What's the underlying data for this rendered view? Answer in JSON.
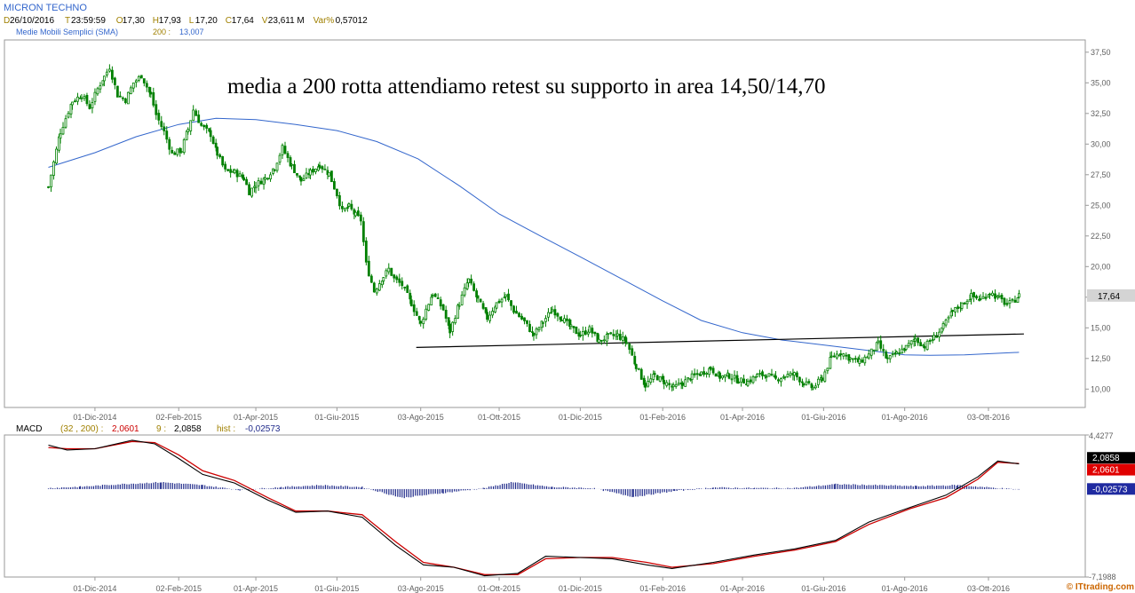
{
  "header": {
    "title": "MICRON TECHNO",
    "ohlc": [
      {
        "label": "D",
        "value": "26/10/2016"
      },
      {
        "label": "T",
        "value": "23:59:59"
      },
      {
        "label": "O",
        "value": "17,30"
      },
      {
        "label": "H",
        "value": "17,93"
      },
      {
        "label": "L",
        "value": "17,20"
      },
      {
        "label": "C",
        "value": "17,64"
      },
      {
        "label": "V",
        "value": "23,611 M"
      },
      {
        "label": "Var%",
        "value": "0,57012"
      }
    ],
    "sma_label": "Medie Mobili Semplici (SMA)",
    "sma_period": "200 :",
    "sma_value": "13,007"
  },
  "annotation": "media a 200 rotta attendiamo retest su supporto in area 14,50/14,70",
  "watermark": "© ITtrading.com",
  "colors": {
    "candle": "#008000",
    "sma": "#3366cc",
    "macd_line": "#000000",
    "signal_line": "#cc0000",
    "histogram": "#1f2a8a",
    "support": "#000000",
    "header_value": "#3366cc"
  },
  "chart_data": [
    {
      "type": "candlestick",
      "ylim": [
        8.5,
        38.5
      ],
      "y_ticks": [
        "37,50",
        "35,00",
        "32,50",
        "30,00",
        "27,50",
        "25,00",
        "22,50",
        "20,00",
        "17,50",
        "15,00",
        "12,50",
        "10,00"
      ],
      "y_tick_values": [
        37.5,
        35,
        32.5,
        30,
        27.5,
        25,
        22.5,
        20,
        17.5,
        15,
        12.5,
        10
      ],
      "x_ticks": [
        "01-Dic-2014",
        "02-Feb-2015",
        "01-Apr-2015",
        "01-Giu-2015",
        "03-Ago-2015",
        "01-Ott-2015",
        "01-Dic-2015",
        "01-Feb-2016",
        "01-Apr-2016",
        "01-Giu-2016",
        "01-Ago-2016",
        "03-Ott-2016"
      ],
      "last_price_label": "17,64",
      "last_price": 17.64,
      "price_path": [
        [
          "2014-10-27",
          26.5
        ],
        [
          "2014-11-05",
          31
        ],
        [
          "2014-11-14",
          33.5
        ],
        [
          "2014-11-21",
          34
        ],
        [
          "2014-11-27",
          33
        ],
        [
          "2014-12-03",
          34.5
        ],
        [
          "2014-12-08",
          35.5
        ],
        [
          "2014-12-12",
          36.3
        ],
        [
          "2014-12-18",
          34
        ],
        [
          "2014-12-24",
          33.6
        ],
        [
          "2014-12-30",
          35
        ],
        [
          "2015-01-05",
          35.6
        ],
        [
          "2015-01-12",
          34
        ],
        [
          "2015-01-16",
          32.4
        ],
        [
          "2015-01-22",
          31
        ],
        [
          "2015-01-28",
          29.2
        ],
        [
          "2015-02-04",
          29.5
        ],
        [
          "2015-02-09",
          31.2
        ],
        [
          "2015-02-13",
          32.8
        ],
        [
          "2015-02-19",
          31.5
        ],
        [
          "2015-02-26",
          30.8
        ],
        [
          "2015-03-03",
          29.2
        ],
        [
          "2015-03-09",
          27.8
        ],
        [
          "2015-03-16",
          27.7
        ],
        [
          "2015-03-23",
          27.2
        ],
        [
          "2015-03-27",
          26.1
        ],
        [
          "2015-04-01",
          26.7
        ],
        [
          "2015-04-08",
          27.2
        ],
        [
          "2015-04-15",
          28.1
        ],
        [
          "2015-04-21",
          29.7
        ],
        [
          "2015-04-28",
          28.2
        ],
        [
          "2015-05-05",
          27
        ],
        [
          "2015-05-12",
          27.7
        ],
        [
          "2015-05-19",
          28.3
        ],
        [
          "2015-05-26",
          27.6
        ],
        [
          "2015-06-01",
          25.9
        ],
        [
          "2015-06-05",
          24.5
        ],
        [
          "2015-06-10",
          24.9
        ],
        [
          "2015-06-15",
          24.2
        ],
        [
          "2015-06-19",
          23.8
        ],
        [
          "2015-06-23",
          20.2
        ],
        [
          "2015-06-29",
          18
        ],
        [
          "2015-07-06",
          19.2
        ],
        [
          "2015-07-10",
          19.8
        ],
        [
          "2015-07-14",
          19
        ],
        [
          "2015-07-20",
          18.5
        ],
        [
          "2015-07-27",
          17
        ],
        [
          "2015-08-03",
          15.3
        ],
        [
          "2015-08-07",
          16.5
        ],
        [
          "2015-08-12",
          17.8
        ],
        [
          "2015-08-20",
          16.5
        ],
        [
          "2015-08-25",
          14.7
        ],
        [
          "2015-09-01",
          17
        ],
        [
          "2015-09-08",
          18.9
        ],
        [
          "2015-09-15",
          17.3
        ],
        [
          "2015-09-22",
          15.8
        ],
        [
          "2015-09-29",
          17
        ],
        [
          "2015-10-06",
          17.6
        ],
        [
          "2015-10-12",
          16.4
        ],
        [
          "2015-10-20",
          15.5
        ],
        [
          "2015-10-27",
          14.4
        ],
        [
          "2015-11-03",
          15.5
        ],
        [
          "2015-11-10",
          16.5
        ],
        [
          "2015-11-17",
          15.8
        ],
        [
          "2015-11-24",
          15
        ],
        [
          "2015-12-01",
          14.4
        ],
        [
          "2015-12-08",
          14.9
        ],
        [
          "2015-12-15",
          13.9
        ],
        [
          "2015-12-22",
          14.3
        ],
        [
          "2015-12-29",
          14.4
        ],
        [
          "2016-01-05",
          13.8
        ],
        [
          "2016-01-12",
          11.9
        ],
        [
          "2016-01-19",
          10.3
        ],
        [
          "2016-01-26",
          11.1
        ],
        [
          "2016-02-02",
          10.6
        ],
        [
          "2016-02-09",
          10.1
        ],
        [
          "2016-02-16",
          10.5
        ],
        [
          "2016-02-23",
          11
        ],
        [
          "2016-03-01",
          11.3
        ],
        [
          "2016-03-08",
          11.7
        ],
        [
          "2016-03-15",
          11
        ],
        [
          "2016-03-22",
          11.1
        ],
        [
          "2016-03-29",
          10.7
        ],
        [
          "2016-04-05",
          10.6
        ],
        [
          "2016-04-12",
          11.1
        ],
        [
          "2016-04-19",
          11.2
        ],
        [
          "2016-04-26",
          10.8
        ],
        [
          "2016-05-03",
          11.1
        ],
        [
          "2016-05-10",
          11.2
        ],
        [
          "2016-05-17",
          10.5
        ],
        [
          "2016-05-24",
          10.1
        ],
        [
          "2016-05-31",
          10.9
        ],
        [
          "2016-06-07",
          12.6
        ],
        [
          "2016-06-14",
          13
        ],
        [
          "2016-06-21",
          12.5
        ],
        [
          "2016-06-28",
          12.2
        ],
        [
          "2016-07-05",
          12.8
        ],
        [
          "2016-07-12",
          13.7
        ],
        [
          "2016-07-19",
          12.4
        ],
        [
          "2016-07-26",
          12.9
        ],
        [
          "2016-08-02",
          13.4
        ],
        [
          "2016-08-09",
          14.1
        ],
        [
          "2016-08-16",
          13.5
        ],
        [
          "2016-08-23",
          14.2
        ],
        [
          "2016-08-30",
          15.1
        ],
        [
          "2016-09-06",
          16.3
        ],
        [
          "2016-09-13",
          16.9
        ],
        [
          "2016-09-20",
          17.6
        ],
        [
          "2016-09-27",
          17.3
        ],
        [
          "2016-10-04",
          17.9
        ],
        [
          "2016-10-11",
          17.4
        ],
        [
          "2016-10-17",
          16.9
        ],
        [
          "2016-10-21",
          17.1
        ],
        [
          "2016-10-26",
          17.64
        ]
      ],
      "sma_path": [
        [
          "2014-10-27",
          28.1
        ],
        [
          "2014-12-01",
          29.3
        ],
        [
          "2015-01-01",
          30.6
        ],
        [
          "2015-02-02",
          31.6
        ],
        [
          "2015-03-02",
          32.1
        ],
        [
          "2015-04-01",
          32.0
        ],
        [
          "2015-05-01",
          31.6
        ],
        [
          "2015-06-01",
          31.1
        ],
        [
          "2015-07-01",
          30.2
        ],
        [
          "2015-08-01",
          28.8
        ],
        [
          "2015-09-01",
          26.6
        ],
        [
          "2015-10-01",
          24.3
        ],
        [
          "2015-11-01",
          22.5
        ],
        [
          "2015-12-01",
          20.8
        ],
        [
          "2016-01-01",
          19.0
        ],
        [
          "2016-02-01",
          17.2
        ],
        [
          "2016-03-01",
          15.6
        ],
        [
          "2016-04-01",
          14.6
        ],
        [
          "2016-05-01",
          14.0
        ],
        [
          "2016-06-01",
          13.6
        ],
        [
          "2016-07-01",
          13.2
        ],
        [
          "2016-08-01",
          12.8
        ],
        [
          "2016-08-20",
          12.75
        ],
        [
          "2016-09-15",
          12.8
        ],
        [
          "2016-10-26",
          13.0
        ]
      ],
      "support_line": [
        [
          "2015-08-01",
          13.4
        ],
        [
          "2016-10-31",
          14.5
        ]
      ]
    },
    {
      "type": "line",
      "label": "MACD",
      "params": "(32 , 200) :",
      "macd_value": "2,0601",
      "signal_label": "9 :",
      "signal_value": "2,0858",
      "hist_label": "hist :",
      "hist_value": "-0,02573",
      "ylim": [
        -7.1988,
        4.4277
      ],
      "y_ticks": [
        "4,4277",
        "-7,1988"
      ],
      "y_tick_values": [
        4.4277,
        -7.1988
      ],
      "last_labels": [
        "2,0858",
        "2,0601",
        "-0,02573"
      ],
      "last_values": [
        2.0858,
        2.0601,
        -0.02573
      ],
      "x_ticks": [
        "01-Dic-2014",
        "02-Feb-2015",
        "01-Apr-2015",
        "01-Giu-2015",
        "03-Ago-2015",
        "01-Ott-2015",
        "01-Dic-2015",
        "01-Feb-2016",
        "01-Apr-2016",
        "01-Giu-2016",
        "01-Ago-2016",
        "03-Ott-2016"
      ],
      "macd_path": [
        [
          "2014-10-27",
          3.6
        ],
        [
          "2014-11-10",
          3.2
        ],
        [
          "2014-12-01",
          3.3
        ],
        [
          "2014-12-29",
          4.0
        ],
        [
          "2015-01-15",
          3.7
        ],
        [
          "2015-02-02",
          2.5
        ],
        [
          "2015-02-20",
          1.2
        ],
        [
          "2015-03-16",
          0.5
        ],
        [
          "2015-04-10",
          -0.9
        ],
        [
          "2015-05-01",
          -1.9
        ],
        [
          "2015-05-25",
          -1.8
        ],
        [
          "2015-06-20",
          -2.3
        ],
        [
          "2015-07-15",
          -4.6
        ],
        [
          "2015-08-05",
          -6.2
        ],
        [
          "2015-08-28",
          -6.4
        ],
        [
          "2015-09-20",
          -7.1
        ],
        [
          "2015-10-15",
          -6.9
        ],
        [
          "2015-11-05",
          -5.5
        ],
        [
          "2015-12-01",
          -5.6
        ],
        [
          "2015-12-25",
          -5.7
        ],
        [
          "2016-01-20",
          -6.2
        ],
        [
          "2016-02-08",
          -6.5
        ],
        [
          "2016-03-10",
          -6.0
        ],
        [
          "2016-04-10",
          -5.4
        ],
        [
          "2016-05-10",
          -4.9
        ],
        [
          "2016-06-10",
          -4.2
        ],
        [
          "2016-07-05",
          -2.7
        ],
        [
          "2016-08-05",
          -1.5
        ],
        [
          "2016-09-01",
          -0.5
        ],
        [
          "2016-09-25",
          1.0
        ],
        [
          "2016-10-10",
          2.3
        ],
        [
          "2016-10-26",
          2.06
        ]
      ],
      "signal_path": [
        [
          "2014-10-27",
          3.4
        ],
        [
          "2014-11-10",
          3.3
        ],
        [
          "2014-12-01",
          3.3
        ],
        [
          "2014-12-29",
          3.9
        ],
        [
          "2015-01-15",
          3.8
        ],
        [
          "2015-02-02",
          2.8
        ],
        [
          "2015-02-20",
          1.5
        ],
        [
          "2015-03-16",
          0.7
        ],
        [
          "2015-04-10",
          -0.7
        ],
        [
          "2015-05-01",
          -1.8
        ],
        [
          "2015-05-25",
          -1.8
        ],
        [
          "2015-06-20",
          -2.1
        ],
        [
          "2015-07-15",
          -4.3
        ],
        [
          "2015-08-05",
          -6.0
        ],
        [
          "2015-08-28",
          -6.4
        ],
        [
          "2015-09-20",
          -7.0
        ],
        [
          "2015-10-15",
          -7.0
        ],
        [
          "2015-11-05",
          -5.7
        ],
        [
          "2015-12-01",
          -5.6
        ],
        [
          "2015-12-25",
          -5.6
        ],
        [
          "2016-01-20",
          -6.0
        ],
        [
          "2016-02-08",
          -6.4
        ],
        [
          "2016-03-10",
          -6.1
        ],
        [
          "2016-04-10",
          -5.5
        ],
        [
          "2016-05-10",
          -5.0
        ],
        [
          "2016-06-10",
          -4.3
        ],
        [
          "2016-07-05",
          -2.9
        ],
        [
          "2016-08-05",
          -1.6
        ],
        [
          "2016-09-01",
          -0.7
        ],
        [
          "2016-09-25",
          0.8
        ],
        [
          "2016-10-10",
          2.2
        ],
        [
          "2016-10-26",
          2.09
        ]
      ],
      "hist_path": [
        [
          "2014-10-27",
          0.05
        ],
        [
          "2014-11-20",
          0.12
        ],
        [
          "2014-12-20",
          0.25
        ],
        [
          "2015-01-20",
          0.35
        ],
        [
          "2015-02-20",
          0.2
        ],
        [
          "2015-03-20",
          -0.05
        ],
        [
          "2015-04-20",
          0.1
        ],
        [
          "2015-05-20",
          0.2
        ],
        [
          "2015-06-20",
          0.1
        ],
        [
          "2015-07-20",
          -0.45
        ],
        [
          "2015-08-20",
          -0.2
        ],
        [
          "2015-09-20",
          0.05
        ],
        [
          "2015-10-10",
          0.35
        ],
        [
          "2015-11-10",
          0.1
        ],
        [
          "2015-12-10",
          0.05
        ],
        [
          "2016-01-10",
          -0.4
        ],
        [
          "2016-02-10",
          -0.1
        ],
        [
          "2016-03-10",
          0.08
        ],
        [
          "2016-04-10",
          0.05
        ],
        [
          "2016-05-10",
          0.05
        ],
        [
          "2016-06-10",
          0.25
        ],
        [
          "2016-07-10",
          0.2
        ],
        [
          "2016-08-10",
          0.15
        ],
        [
          "2016-09-10",
          0.2
        ],
        [
          "2016-10-10",
          0.05
        ],
        [
          "2016-10-26",
          -0.03
        ]
      ]
    }
  ]
}
